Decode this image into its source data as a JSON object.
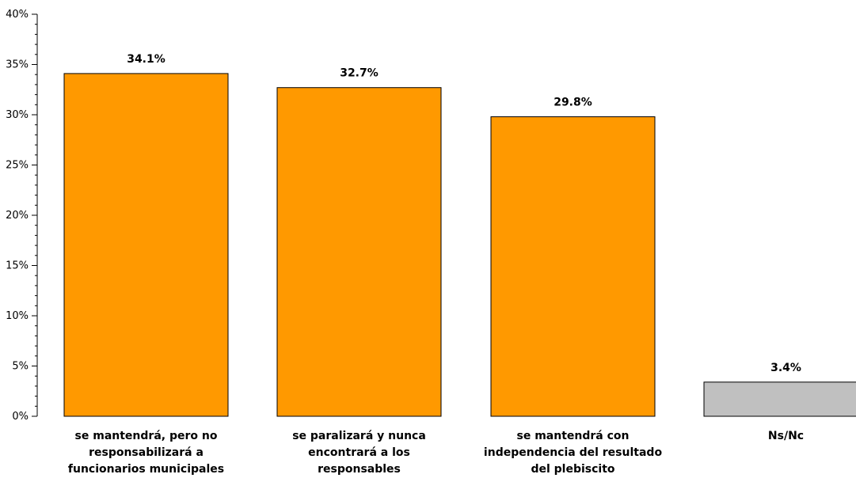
{
  "chart_data": {
    "type": "bar",
    "categories": [
      [
        "se mantendrá, pero no",
        "responsabilizará a",
        "funcionarios municipales"
      ],
      [
        "se paralizará y nunca",
        "encontrará a los",
        "responsables"
      ],
      [
        "se mantendrá con",
        "independencia del resultado",
        "del plebiscito"
      ],
      [
        "Ns/Nc"
      ]
    ],
    "values": [
      34.1,
      32.7,
      29.8,
      3.4
    ],
    "data_labels": [
      "34.1%",
      "32.7%",
      "29.8%",
      "3.4%"
    ],
    "bar_colors": [
      "#ff9900",
      "#ff9900",
      "#ff9900",
      "#c0c0c0"
    ],
    "ylim": [
      0,
      40
    ],
    "yticks": [
      0,
      5,
      10,
      15,
      20,
      25,
      30,
      35,
      40
    ],
    "ytick_labels": [
      "0%",
      "5%",
      "10%",
      "15%",
      "20%",
      "25%",
      "30%",
      "35%",
      "40%"
    ],
    "title": "",
    "xlabel": "",
    "ylabel": "",
    "grid": false,
    "legend": "none"
  }
}
